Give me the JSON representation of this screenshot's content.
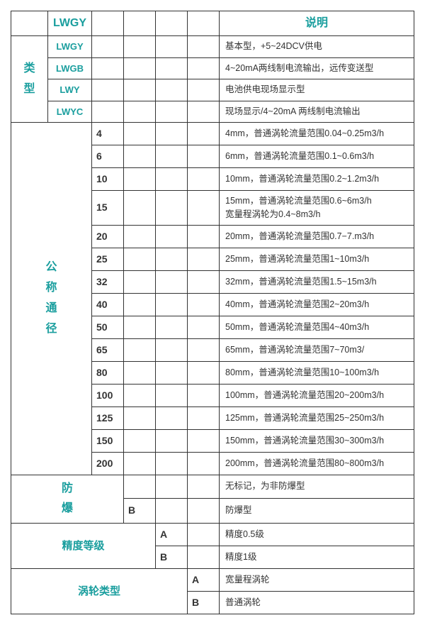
{
  "header": {
    "col1": "LWGY",
    "col_desc": "说明"
  },
  "type_section": {
    "label": "类\n型",
    "rows": [
      {
        "code": "LWGY",
        "desc": "基本型，+5~24DCV供电"
      },
      {
        "code": "LWGB",
        "desc": "4~20mA两线制电流输出，远传变送型"
      },
      {
        "code": "LWY",
        "desc": "电池供电现场显示型"
      },
      {
        "code": "LWYC",
        "desc": "现场显示/4~20mA 两线制电流输出"
      }
    ]
  },
  "diameter_section": {
    "label": "公\n称\n通\n径",
    "rows": [
      {
        "code": "4",
        "desc": "4mm，普通涡轮流量范围0.04~0.25m3/h"
      },
      {
        "code": "6",
        "desc": "6mm，普通涡轮流量范围0.1~0.6m3/h"
      },
      {
        "code": "10",
        "desc": "10mm，普通涡轮流量范围0.2~1.2m3/h"
      },
      {
        "code": "15",
        "desc": "15mm，普通涡轮流量范围0.6~6m3/h\n宽量程涡轮为0.4~8m3/h"
      },
      {
        "code": "20",
        "desc": "20mm，普通涡轮流量范围0.7−7.m3/h"
      },
      {
        "code": "25",
        "desc": "25mm，普通涡轮流量范围1~10m3/h"
      },
      {
        "code": "32",
        "desc": "32mm，普通涡轮流量范围1.5~15m3/h"
      },
      {
        "code": "40",
        "desc": "40mm，普通涡轮流量范围2~20m3/h"
      },
      {
        "code": "50",
        "desc": "50mm，普通涡轮流量范围4~40m3/h"
      },
      {
        "code": "65",
        "desc": "65mm，普通涡轮流量范围7~70m3/"
      },
      {
        "code": "80",
        "desc": "80mm，普通涡轮流量范围10~100m3/h"
      },
      {
        "code": "100",
        "desc": "100mm，普通涡轮流量范围20~200m3/h"
      },
      {
        "code": "125",
        "desc": "125mm，普通涡轮流量范围25~250m3/h"
      },
      {
        "code": "150",
        "desc": "150mm，普通涡轮流量范围30~300m3/h"
      },
      {
        "code": "200",
        "desc": "200mm，普通涡轮流量范围80~800m3/h"
      }
    ]
  },
  "explosion_section": {
    "label": "防\n爆",
    "rows": [
      {
        "code": "",
        "desc": "无标记，为非防爆型"
      },
      {
        "code": "B",
        "desc": "防爆型"
      }
    ]
  },
  "accuracy_section": {
    "label": "精度等级",
    "rows": [
      {
        "code": "A",
        "desc": "精度0.5级"
      },
      {
        "code": "B",
        "desc": "精度1级"
      }
    ]
  },
  "turbine_section": {
    "label": "涡轮类型",
    "rows": [
      {
        "code": "A",
        "desc": "宽量程涡轮"
      },
      {
        "code": "B",
        "desc": "普通涡轮"
      }
    ]
  }
}
